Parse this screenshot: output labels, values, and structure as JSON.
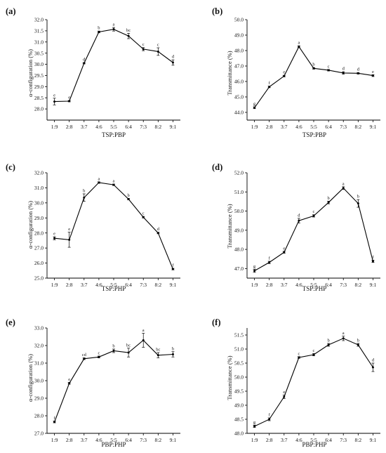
{
  "chart_data": [
    {
      "type": "line",
      "panel": "(a)",
      "xlabel": "TSP:PBP",
      "ylabel": "α-configuration (%)",
      "ylim": [
        27.5,
        32.0
      ],
      "yticks": [
        "28.0",
        "28.5",
        "29.0",
        "29.5",
        "30.0",
        "30.5",
        "31.0",
        "31.5",
        "32.0"
      ],
      "categories": [
        "1:9",
        "2:8",
        "3:7",
        "4:6",
        "5:5",
        "6:4",
        "7:3",
        "8:2",
        "9:1"
      ],
      "values": [
        28.33,
        28.35,
        30.05,
        31.45,
        31.57,
        31.27,
        30.68,
        30.57,
        30.08
      ],
      "errors": [
        0.15,
        0.03,
        0.03,
        0.04,
        0.08,
        0.12,
        0.07,
        0.17,
        0.12
      ],
      "letters": [
        "e",
        "e",
        "d",
        "b",
        "a",
        "bc",
        "c",
        "c",
        "d"
      ]
    },
    {
      "type": "line",
      "panel": "(b)",
      "xlabel": "TSP:PBP",
      "ylabel": "Transmittance (%)",
      "ylim": [
        43.5,
        50.0
      ],
      "yticks": [
        "44.0",
        "45.0",
        "46.0",
        "47.0",
        "48.0",
        "49.0",
        "50.0"
      ],
      "categories": [
        "1:9",
        "2:8",
        "3:7",
        "4:6",
        "5:5",
        "6:4",
        "7:3",
        "8:2",
        "9:1"
      ],
      "values": [
        44.3,
        45.65,
        46.35,
        48.25,
        46.85,
        46.73,
        46.55,
        46.53,
        46.38
      ],
      "errors": [
        0.06,
        0.05,
        0.05,
        0.06,
        0.05,
        0.05,
        0.08,
        0.05,
        0.06
      ],
      "letters": [
        "g",
        "f",
        "e",
        "a",
        "b",
        "c",
        "d",
        "d",
        "e"
      ]
    },
    {
      "type": "line",
      "panel": "(c)",
      "xlabel": "TSP:PHP",
      "ylabel": "α-configuration (%)",
      "ylim": [
        25.0,
        32.0
      ],
      "yticks": [
        "25.0",
        "26.0",
        "27.0",
        "28.0",
        "29.0",
        "30.0",
        "31.0",
        "32.0"
      ],
      "categories": [
        "1:9",
        "2:8",
        "3:7",
        "4:6",
        "5:5",
        "6:4",
        "7:3",
        "8:2",
        "9:1"
      ],
      "values": [
        27.65,
        27.55,
        30.35,
        31.35,
        31.2,
        30.25,
        29.05,
        28.0,
        25.6
      ],
      "errors": [
        0.1,
        0.5,
        0.25,
        0.05,
        0.05,
        0.05,
        0.05,
        0.05,
        0.05
      ],
      "letters": [
        "e",
        "e",
        "b",
        "a",
        "a",
        "b",
        "c",
        "d",
        "f"
      ]
    },
    {
      "type": "line",
      "panel": "(d)",
      "xlabel": "TSP:PHP",
      "ylabel": "Transmittance (%)",
      "ylim": [
        46.5,
        52.0
      ],
      "yticks": [
        "47.0",
        "48.0",
        "49.0",
        "50.0",
        "51.0",
        "52.0"
      ],
      "categories": [
        "1:9",
        "2:8",
        "3:7",
        "4:6",
        "5:5",
        "6:4",
        "7:3",
        "8:2",
        "9:1"
      ],
      "values": [
        46.88,
        47.32,
        47.85,
        49.5,
        49.75,
        50.45,
        51.2,
        50.4,
        47.38
      ],
      "errors": [
        0.08,
        0.06,
        0.05,
        0.12,
        0.06,
        0.07,
        0.07,
        0.2,
        0.06
      ],
      "letters": [
        "g",
        "f",
        "e",
        "d",
        "c",
        "b",
        "a",
        "b",
        "f"
      ]
    },
    {
      "type": "line",
      "panel": "(e)",
      "xlabel": "PBP:PHP",
      "ylabel": "α-configuration (%)",
      "ylim": [
        27.0,
        33.0
      ],
      "yticks": [
        "27.0",
        "28.0",
        "29.0",
        "30.0",
        "31.0",
        "32.0",
        "33.0"
      ],
      "categories": [
        "1:9",
        "2:8",
        "3:7",
        "4:6",
        "5:5",
        "6:4",
        "7:3",
        "8:2",
        "9:1"
      ],
      "values": [
        27.65,
        29.85,
        31.25,
        31.35,
        31.7,
        31.6,
        32.3,
        31.45,
        31.5
      ],
      "errors": [
        0.05,
        0.05,
        0.05,
        0.05,
        0.1,
        0.25,
        0.4,
        0.15,
        0.15
      ],
      "letters": [
        "f",
        "e",
        "cd",
        "c",
        "b",
        "bc",
        "a",
        "bc",
        "b"
      ]
    },
    {
      "type": "line",
      "panel": "(f)",
      "xlabel": "PBP:PHP",
      "ylabel": "Transmittance (%)",
      "ylim": [
        48.0,
        51.75
      ],
      "yticks": [
        "48.0",
        "48.5",
        "49.0",
        "49.5",
        "50.0",
        "50.5",
        "51.0",
        "51.5"
      ],
      "categories": [
        "1:9",
        "2:8",
        "3:7",
        "4:6",
        "5:5",
        "6:4",
        "7:3",
        "8:2",
        "9:1"
      ],
      "values": [
        48.25,
        48.5,
        49.3,
        50.7,
        50.8,
        51.15,
        51.38,
        51.15,
        50.35
      ],
      "errors": [
        0.04,
        0.05,
        0.06,
        0.03,
        0.04,
        0.05,
        0.08,
        0.05,
        0.15
      ],
      "letters": [
        "g",
        "f",
        "e",
        "c",
        "c",
        "b",
        "a",
        "b",
        "d"
      ]
    }
  ]
}
